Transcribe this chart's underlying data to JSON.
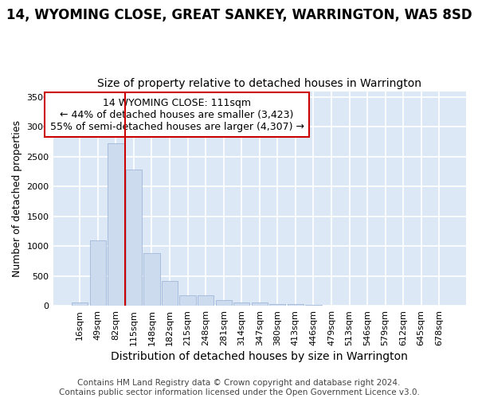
{
  "title": "14, WYOMING CLOSE, GREAT SANKEY, WARRINGTON, WA5 8SD",
  "subtitle": "Size of property relative to detached houses in Warrington",
  "xlabel": "Distribution of detached houses by size in Warrington",
  "ylabel": "Number of detached properties",
  "bar_color": "#ccdcee",
  "bar_edge_color": "#a0b8d8",
  "bg_color": "#dce8f5",
  "grid_color": "#ffffff",
  "categories": [
    "16sqm",
    "49sqm",
    "82sqm",
    "115sqm",
    "148sqm",
    "182sqm",
    "215sqm",
    "248sqm",
    "281sqm",
    "314sqm",
    "347sqm",
    "380sqm",
    "413sqm",
    "446sqm",
    "479sqm",
    "513sqm",
    "546sqm",
    "579sqm",
    "612sqm",
    "645sqm",
    "678sqm"
  ],
  "values": [
    50,
    1100,
    2720,
    2290,
    880,
    420,
    175,
    170,
    95,
    60,
    55,
    30,
    30,
    10,
    0,
    0,
    0,
    0,
    0,
    0,
    0
  ],
  "ylim": [
    0,
    3600
  ],
  "yticks": [
    0,
    500,
    1000,
    1500,
    2000,
    2500,
    3000,
    3500
  ],
  "vline_x_index": 3,
  "vline_color": "#cc0000",
  "annotation_text": "14 WYOMING CLOSE: 111sqm\n← 44% of detached houses are smaller (3,423)\n55% of semi-detached houses are larger (4,307) →",
  "annotation_box_color": "#ffffff",
  "annotation_box_edge": "#cc0000",
  "footer_text": "Contains HM Land Registry data © Crown copyright and database right 2024.\nContains public sector information licensed under the Open Government Licence v3.0.",
  "title_fontsize": 12,
  "subtitle_fontsize": 10,
  "xlabel_fontsize": 10,
  "ylabel_fontsize": 9,
  "tick_fontsize": 8,
  "annotation_fontsize": 9,
  "footer_fontsize": 7.5
}
